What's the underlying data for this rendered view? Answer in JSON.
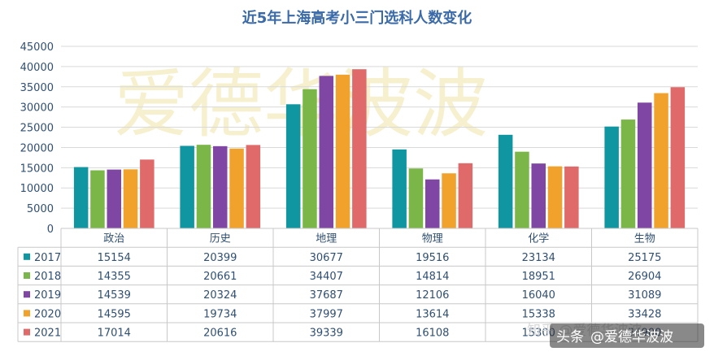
{
  "chart_data": {
    "type": "bar",
    "title": "近5年上海高考小三门选科人数变化",
    "categories": [
      "政治",
      "历史",
      "地理",
      "物理",
      "化学",
      "生物"
    ],
    "series": [
      {
        "name": "2017",
        "color": "#0f96a0",
        "values": [
          15154,
          20399,
          30677,
          19516,
          23134,
          25175
        ]
      },
      {
        "name": "2018",
        "color": "#7ab648",
        "values": [
          14355,
          20661,
          34407,
          14814,
          18951,
          26904
        ]
      },
      {
        "name": "2019",
        "color": "#7f47a3",
        "values": [
          14539,
          20324,
          37687,
          12106,
          16040,
          31089
        ]
      },
      {
        "name": "2020",
        "color": "#f1a22d",
        "values": [
          14595,
          19734,
          37997,
          13614,
          15338,
          33428
        ]
      },
      {
        "name": "2021",
        "color": "#e06a6a",
        "values": [
          17014,
          20616,
          39339,
          16108,
          15300,
          34900
        ]
      }
    ],
    "ylim": [
      0,
      45000
    ],
    "yticks": [
      0,
      5000,
      10000,
      15000,
      20000,
      25000,
      30000,
      35000,
      40000,
      45000
    ],
    "grid": true,
    "legend": "data-table"
  },
  "watermark": "爱德华波波",
  "credit": {
    "platform": "头条",
    "author": "@爱德华波波",
    "secondary": "知乎 @爱德华波波"
  }
}
